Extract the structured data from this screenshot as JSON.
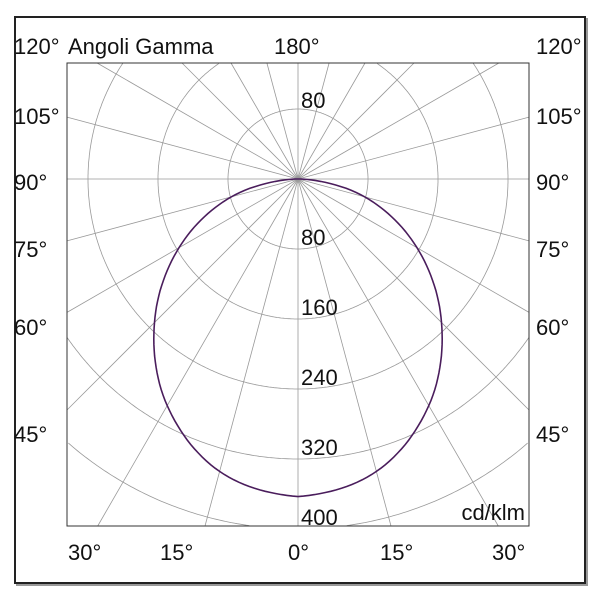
{
  "chart_data": {
    "type": "polar",
    "title": "Angoli Gamma",
    "unit_label": "cd/klm",
    "radial_ticks": [
      "80",
      "160",
      "240",
      "320",
      "400"
    ],
    "radial_max": 400,
    "angle_labels_left": [
      "120°",
      "105°",
      "90°",
      "75°",
      "60°",
      "45°"
    ],
    "angle_labels_right": [
      "120°",
      "105°",
      "90°",
      "75°",
      "60°",
      "45°"
    ],
    "angle_labels_bottom": [
      "30°",
      "15°",
      "0°",
      "15°",
      "30°"
    ],
    "angle_label_top": "180°",
    "upper_tick": "80",
    "grid": true,
    "spoke_step_deg": 15,
    "series": [
      {
        "gamma_deg": [
          0,
          15,
          30,
          45,
          60,
          75,
          90
        ],
        "intensity": [
          363,
          346,
          299,
          232,
          157,
          79,
          0
        ],
        "color": "#4a1d5c"
      }
    ]
  }
}
